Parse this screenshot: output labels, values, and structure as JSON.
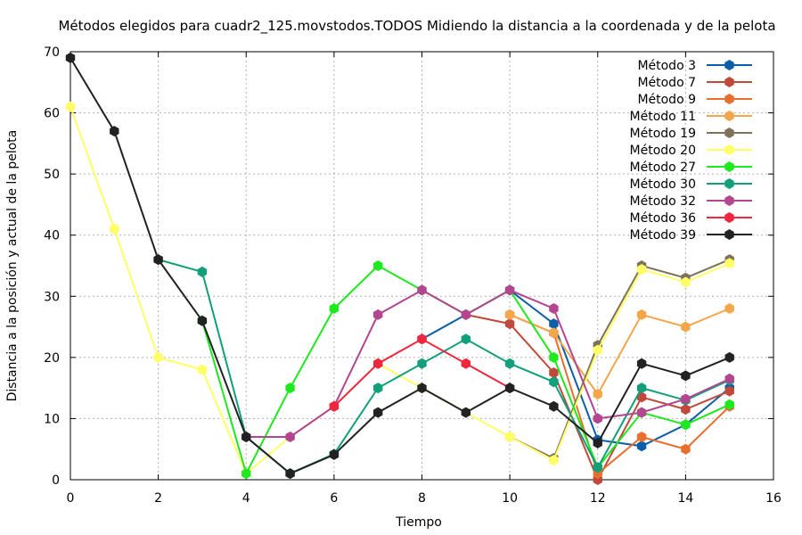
{
  "chart_data": {
    "type": "line",
    "title": "Métodos elegidos para cuadr2_125.movstodos.TODOS Midiendo la distancia a la coordenada y de la pelota",
    "xlabel": "Tiempo",
    "ylabel": "Distancia a la posición y actual de la pelota",
    "xlim": [
      0,
      16
    ],
    "ylim": [
      0,
      70
    ],
    "xticks": [
      0,
      2,
      4,
      6,
      8,
      10,
      12,
      14,
      16
    ],
    "yticks": [
      0,
      10,
      20,
      30,
      40,
      50,
      60,
      70
    ],
    "grid": true,
    "legend_position": "top-right",
    "series": [
      {
        "name": "Método 3",
        "color": "#0b5ea8",
        "x": [
          8,
          9,
          10,
          11,
          12,
          13,
          14,
          15
        ],
        "y": [
          23,
          27,
          31,
          25.5,
          6.5,
          5.5,
          9,
          15
        ]
      },
      {
        "name": "Método 7",
        "color": "#c0493b",
        "x": [
          9,
          10,
          11,
          12,
          13,
          14,
          15
        ],
        "y": [
          27,
          25.5,
          17.5,
          0,
          13.5,
          11.5,
          14.5
        ]
      },
      {
        "name": "Método 9",
        "color": "#e86f2e",
        "x": [
          10,
          11,
          12,
          13,
          14,
          15
        ],
        "y": [
          27,
          24,
          1,
          7,
          5,
          12
        ]
      },
      {
        "name": "Método 11",
        "color": "#f4a64a",
        "x": [
          10,
          11,
          12,
          13,
          14,
          15
        ],
        "y": [
          27,
          24,
          14,
          27,
          25,
          28
        ]
      },
      {
        "name": "Método 19",
        "color": "#7e735a",
        "x": [
          10,
          11,
          12,
          13,
          14,
          15
        ],
        "y": [
          7,
          3.5,
          22,
          35,
          33,
          36
        ]
      },
      {
        "name": "Método 20",
        "color": "#ffff66",
        "x": [
          0,
          1,
          2,
          3,
          4,
          5,
          6,
          7,
          8,
          9,
          10,
          11,
          12,
          13,
          14,
          15
        ],
        "y": [
          61,
          41,
          20,
          18,
          1,
          7,
          12,
          19,
          15,
          11,
          7,
          3.2,
          21.2,
          34.4,
          32.3,
          35.4
        ]
      },
      {
        "name": "Método 27",
        "color": "#1ee81e",
        "x": [
          3,
          4,
          5,
          6,
          7,
          8,
          9,
          10,
          11,
          12,
          13,
          14,
          15
        ],
        "y": [
          26,
          1,
          15,
          28,
          35,
          31,
          27,
          31,
          20,
          2,
          11,
          9,
          12.3
        ]
      },
      {
        "name": "Método 30",
        "color": "#11a07a",
        "x": [
          2,
          3,
          4,
          5,
          6,
          7,
          8,
          9,
          10,
          11,
          12,
          13,
          14,
          15
        ],
        "y": [
          36,
          34,
          7,
          1,
          4.2,
          15,
          19,
          23,
          19,
          16,
          2,
          15,
          13,
          16.3
        ]
      },
      {
        "name": "Método 32",
        "color": "#b3468f",
        "x": [
          4,
          5,
          6,
          7,
          8,
          9,
          10,
          11,
          12,
          13,
          14,
          15
        ],
        "y": [
          7,
          7,
          12,
          27,
          31,
          27,
          31,
          28,
          10,
          11,
          13.2,
          16.5
        ]
      },
      {
        "name": "Método 36",
        "color": "#f0263f",
        "x": [
          6,
          7,
          8,
          9,
          10
        ],
        "y": [
          12,
          19,
          23,
          19,
          15
        ]
      },
      {
        "name": "Método 39",
        "color": "#222222",
        "x": [
          0,
          1,
          2,
          3,
          4,
          5,
          6,
          7,
          8,
          9,
          10,
          11,
          12,
          13,
          14,
          15
        ],
        "y": [
          69,
          57,
          36,
          26,
          7,
          1,
          4.1,
          11,
          15,
          11,
          15,
          12,
          6,
          19,
          17,
          20
        ]
      }
    ]
  }
}
